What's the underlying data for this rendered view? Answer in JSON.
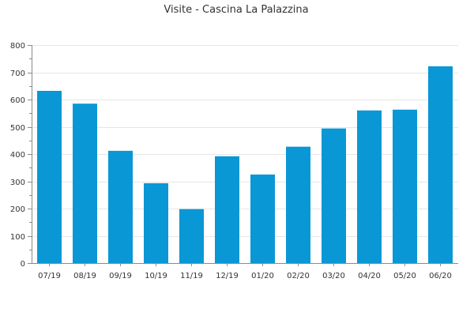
{
  "chart_data": {
    "type": "bar",
    "title": "Visite - Cascina La Palazzina",
    "xlabel": "",
    "ylabel": "",
    "categories": [
      "07/19",
      "08/19",
      "09/19",
      "10/19",
      "11/19",
      "12/19",
      "01/20",
      "02/20",
      "03/20",
      "04/20",
      "05/20",
      "06/20"
    ],
    "values": [
      632,
      585,
      412,
      293,
      198,
      392,
      325,
      427,
      494,
      560,
      563,
      722
    ],
    "ylim": [
      0,
      800
    ],
    "yticks": [
      0,
      100,
      200,
      300,
      400,
      500,
      600,
      700,
      800
    ],
    "grid": true,
    "legend": "none",
    "bar_color": "#0a97d6"
  }
}
